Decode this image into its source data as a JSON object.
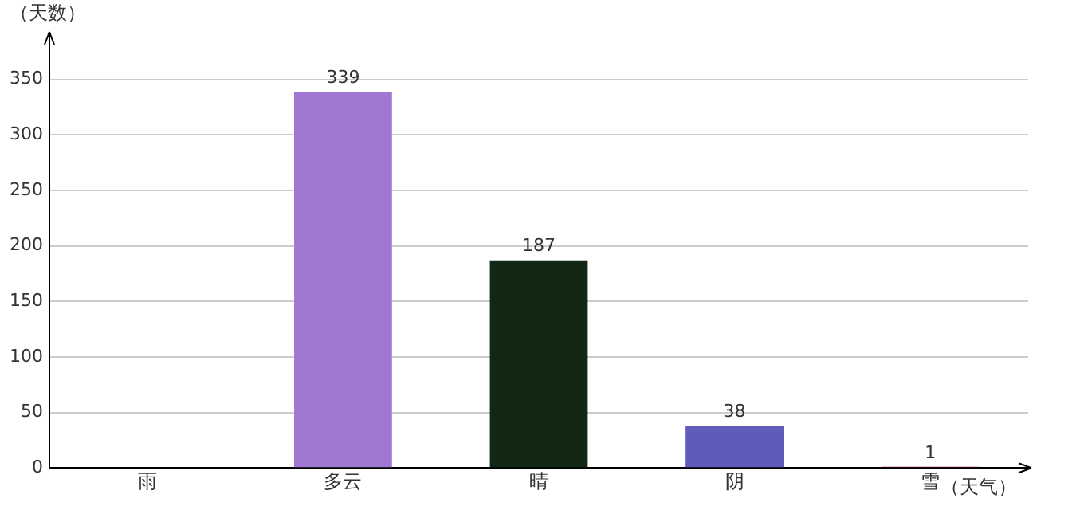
{
  "chart_data": {
    "type": "bar",
    "ylabel": "（天数）",
    "xlabel": "（天气）",
    "categories": [
      "雨",
      "多云",
      "晴",
      "阴",
      "雪"
    ],
    "values": [
      null,
      339,
      187,
      38,
      1
    ],
    "colors": [
      "#f8174a",
      "#a077d1",
      "#132814",
      "#5e5cb8",
      "#8b1a3a"
    ],
    "ylim": [
      0,
      390
    ],
    "yticks": [
      0,
      50,
      100,
      150,
      200,
      250,
      300,
      350
    ],
    "grid": "y",
    "data_labels": true,
    "legend": false
  }
}
